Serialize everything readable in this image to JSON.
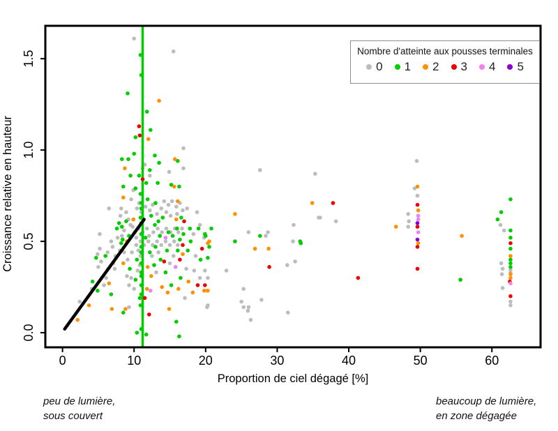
{
  "annotations": {
    "left": [
      "peu de lumière,",
      "sous couvert"
    ],
    "right": [
      "beaucoup de lumière,",
      "en zone dégagée"
    ]
  },
  "chart_data": {
    "type": "scatter",
    "xlabel": "Proportion de ciel dégagé [%]",
    "ylabel": "Croissance relative en hauteur",
    "xlim": [
      -2.4,
      66.8
    ],
    "ylim": [
      -0.08,
      1.68
    ],
    "x_ticks": [
      0,
      10,
      20,
      30,
      40,
      50,
      60
    ],
    "y_ticks": [
      {
        "v": 0,
        "label": "0.0"
      },
      {
        "v": 0.5,
        "label": "0.5"
      },
      {
        "v": 1.0,
        "label": "1.0"
      },
      {
        "v": 1.5,
        "label": "1.5"
      }
    ],
    "legend_title": "Nombre d'atteinte aux pousses terminales",
    "series_labels": [
      "0",
      "1",
      "2",
      "3",
      "4",
      "5"
    ],
    "series_colors": [
      "#BCBCBC",
      "#00CD00",
      "#FF9100",
      "#EE0000",
      "#EE82EE",
      "#8B00D0"
    ],
    "vline_x": 11.2,
    "vline_color": "#00CD00",
    "regression": {
      "x1": 0.3,
      "y1": 0.02,
      "x2": 11.4,
      "y2": 0.62,
      "color": "#000000"
    },
    "points": [
      [
        10.0,
        1.61,
        0
      ],
      [
        10.9,
        1.52,
        1
      ],
      [
        15.5,
        1.54,
        0
      ],
      [
        11.0,
        1.41,
        1
      ],
      [
        9.1,
        1.31,
        1
      ],
      [
        13.5,
        1.27,
        2
      ],
      [
        11.8,
        1.21,
        1
      ],
      [
        10.7,
        1.13,
        3
      ],
      [
        12.3,
        1.11,
        1
      ],
      [
        10.8,
        1.08,
        3
      ],
      [
        10.2,
        1.07,
        1
      ],
      [
        12.0,
        1.06,
        2
      ],
      [
        16.9,
        1.01,
        0
      ],
      [
        8.3,
        0.95,
        1
      ],
      [
        9.2,
        0.95,
        1
      ],
      [
        10.0,
        0.98,
        1
      ],
      [
        12.9,
        0.97,
        1
      ],
      [
        8.7,
        0.9,
        2
      ],
      [
        11.2,
        0.9,
        0
      ],
      [
        11.5,
        0.92,
        0
      ],
      [
        13.5,
        0.93,
        1
      ],
      [
        15.7,
        0.95,
        2
      ],
      [
        16.1,
        0.94,
        1
      ],
      [
        14.9,
        0.88,
        0
      ],
      [
        12.2,
        0.89,
        1
      ],
      [
        12.2,
        0.86,
        0
      ],
      [
        9.5,
        0.86,
        1
      ],
      [
        10.7,
        0.86,
        1
      ],
      [
        16.9,
        0.9,
        0
      ],
      [
        11.2,
        0.84,
        3
      ],
      [
        8.5,
        0.8,
        1
      ],
      [
        10.2,
        0.79,
        1
      ],
      [
        11.7,
        0.82,
        1
      ],
      [
        13.3,
        0.82,
        1
      ],
      [
        15.2,
        0.81,
        1
      ],
      [
        16.3,
        0.8,
        1
      ],
      [
        15.6,
        0.8,
        2
      ],
      [
        9.9,
        0.78,
        0
      ],
      [
        8.5,
        0.74,
        2
      ],
      [
        8.2,
        0.68,
        0
      ],
      [
        9.6,
        0.73,
        0
      ],
      [
        10.7,
        0.71,
        0
      ],
      [
        10.4,
        0.68,
        0
      ],
      [
        11.0,
        0.66,
        0
      ],
      [
        8.1,
        0.64,
        0
      ],
      [
        6.5,
        0.68,
        0
      ],
      [
        14.2,
        0.72,
        0
      ],
      [
        14.8,
        0.7,
        0
      ],
      [
        15.3,
        0.72,
        0
      ],
      [
        15.9,
        0.69,
        0
      ],
      [
        16.4,
        0.71,
        0
      ],
      [
        14.5,
        0.66,
        0
      ],
      [
        15.1,
        0.64,
        0
      ],
      [
        16.0,
        0.65,
        0
      ],
      [
        16.8,
        0.67,
        0
      ],
      [
        13.8,
        0.68,
        0
      ],
      [
        13.2,
        0.65,
        0
      ],
      [
        12.6,
        0.7,
        0
      ],
      [
        12.2,
        0.67,
        0
      ],
      [
        11.6,
        0.69,
        0
      ],
      [
        16.1,
        0.72,
        2
      ],
      [
        17.4,
        0.68,
        0
      ],
      [
        18.8,
        0.66,
        0
      ],
      [
        11.9,
        0.73,
        1
      ],
      [
        12.4,
        0.64,
        1
      ],
      [
        13.0,
        0.71,
        1
      ],
      [
        14.0,
        0.63,
        1
      ],
      [
        16.6,
        0.63,
        1
      ],
      [
        10.9,
        0.63,
        1
      ],
      [
        8.9,
        0.66,
        0
      ],
      [
        9.2,
        0.62,
        0
      ],
      [
        11.0,
        0.68,
        1
      ],
      [
        11.0,
        0.71,
        1
      ],
      [
        10.9,
        0.76,
        1
      ],
      [
        11.3,
        0.62,
        1
      ],
      [
        9.9,
        0.62,
        2
      ],
      [
        13.4,
        0.61,
        1
      ],
      [
        12.9,
        0.59,
        1
      ],
      [
        8.9,
        0.61,
        1
      ],
      [
        8.3,
        0.58,
        1
      ],
      [
        9.3,
        0.53,
        1
      ],
      [
        8.4,
        0.51,
        1
      ],
      [
        5.2,
        0.54,
        0
      ],
      [
        8.2,
        0.49,
        1
      ],
      [
        9.0,
        0.5,
        2
      ],
      [
        15.9,
        0.62,
        2
      ],
      [
        17.0,
        0.61,
        3
      ],
      [
        19.2,
        0.59,
        0
      ],
      [
        19.0,
        0.57,
        1
      ],
      [
        19.9,
        0.54,
        1
      ],
      [
        18.3,
        0.54,
        0
      ],
      [
        13.6,
        0.53,
        1
      ],
      [
        14.4,
        0.52,
        4
      ],
      [
        16.4,
        0.51,
        1
      ],
      [
        19.8,
        0.52,
        0
      ],
      [
        20.8,
        0.57,
        1
      ],
      [
        20.5,
        0.5,
        2
      ],
      [
        17.9,
        0.5,
        1
      ],
      [
        20.0,
        0.53,
        1
      ],
      [
        20.5,
        0.47,
        1
      ],
      [
        9.5,
        0.59,
        0
      ],
      [
        8.6,
        0.56,
        0
      ],
      [
        8.3,
        0.53,
        0
      ],
      [
        7.7,
        0.52,
        0
      ],
      [
        6.8,
        0.5,
        0
      ],
      [
        7.6,
        0.57,
        1
      ],
      [
        7.9,
        0.6,
        1
      ],
      [
        9.8,
        0.58,
        0
      ],
      [
        10.1,
        0.55,
        0
      ],
      [
        10.6,
        0.57,
        0
      ],
      [
        11.2,
        0.55,
        0
      ],
      [
        11.8,
        0.57,
        0
      ],
      [
        12.1,
        0.53,
        0
      ],
      [
        12.7,
        0.55,
        0
      ],
      [
        13.3,
        0.57,
        0
      ],
      [
        13.9,
        0.55,
        0
      ],
      [
        14.5,
        0.57,
        0
      ],
      [
        15.1,
        0.55,
        0
      ],
      [
        15.7,
        0.57,
        0
      ],
      [
        16.2,
        0.55,
        0
      ],
      [
        16.7,
        0.57,
        0
      ],
      [
        10.3,
        0.52,
        0
      ],
      [
        10.9,
        0.5,
        0
      ],
      [
        11.4,
        0.48,
        0
      ],
      [
        12.0,
        0.5,
        0
      ],
      [
        12.6,
        0.48,
        0
      ],
      [
        13.2,
        0.5,
        0
      ],
      [
        13.8,
        0.48,
        0
      ],
      [
        14.4,
        0.5,
        0
      ],
      [
        15.0,
        0.48,
        0
      ],
      [
        15.6,
        0.5,
        0
      ],
      [
        16.1,
        0.48,
        0
      ],
      [
        11.0,
        0.6,
        1
      ],
      [
        11.0,
        0.54,
        1
      ],
      [
        11.0,
        0.47,
        1
      ],
      [
        14.8,
        0.55,
        1
      ],
      [
        15.4,
        0.53,
        1
      ],
      [
        16.0,
        0.57,
        1
      ],
      [
        16.9,
        0.54,
        1
      ],
      [
        17.5,
        0.45,
        1
      ],
      [
        17.8,
        0.57,
        1
      ],
      [
        16.8,
        0.48,
        3
      ],
      [
        19.5,
        0.46,
        3
      ],
      [
        20.3,
        0.49,
        2
      ],
      [
        18.6,
        0.42,
        0
      ],
      [
        19.3,
        0.4,
        1
      ],
      [
        16.1,
        0.45,
        1
      ],
      [
        14.6,
        0.45,
        1
      ],
      [
        6.3,
        0.44,
        0
      ],
      [
        7.0,
        0.47,
        0
      ],
      [
        5.2,
        0.46,
        0
      ],
      [
        4.9,
        0.43,
        0
      ],
      [
        5.4,
        0.39,
        0
      ],
      [
        4.7,
        0.41,
        1
      ],
      [
        5.0,
        0.36,
        0
      ],
      [
        7.3,
        0.35,
        0
      ],
      [
        8.5,
        0.38,
        2
      ],
      [
        8.6,
        0.44,
        0
      ],
      [
        9.1,
        0.4,
        0
      ],
      [
        9.4,
        0.35,
        1
      ],
      [
        9.7,
        0.44,
        0
      ],
      [
        9.0,
        0.31,
        0
      ],
      [
        10.3,
        0.48,
        0
      ],
      [
        10.6,
        0.45,
        0
      ],
      [
        10.9,
        0.42,
        0
      ],
      [
        10.4,
        0.4,
        1
      ],
      [
        10.8,
        0.37,
        0
      ],
      [
        10.5,
        0.34,
        0
      ],
      [
        11.0,
        0.31,
        1
      ],
      [
        11.9,
        0.36,
        2
      ],
      [
        12.5,
        0.42,
        0
      ],
      [
        12.8,
        0.37,
        1
      ],
      [
        13.1,
        0.33,
        0
      ],
      [
        13.4,
        0.44,
        0
      ],
      [
        13.0,
        0.47,
        1
      ],
      [
        14.2,
        0.39,
        3
      ],
      [
        15.5,
        0.42,
        0
      ],
      [
        15.0,
        0.38,
        0
      ],
      [
        14.4,
        0.33,
        1
      ],
      [
        16.4,
        0.4,
        3
      ],
      [
        16.8,
        0.43,
        2
      ],
      [
        17.3,
        0.35,
        0
      ],
      [
        16.5,
        0.3,
        1
      ],
      [
        19.2,
        0.3,
        0
      ],
      [
        18.4,
        0.34,
        0
      ],
      [
        19.9,
        0.34,
        0
      ],
      [
        11.0,
        0.44,
        1
      ],
      [
        11.0,
        0.38,
        1
      ],
      [
        11.0,
        0.33,
        1
      ],
      [
        12.2,
        0.44,
        1
      ],
      [
        13.7,
        0.4,
        1
      ],
      [
        11.6,
        0.52,
        1
      ],
      [
        7.4,
        0.42,
        0
      ],
      [
        7.1,
        0.38,
        0
      ],
      [
        6.4,
        0.35,
        0
      ],
      [
        8.0,
        0.45,
        0
      ],
      [
        6.0,
        0.42,
        1
      ],
      [
        15.8,
        0.36,
        4
      ],
      [
        6.5,
        0.27,
        2
      ],
      [
        6.8,
        0.21,
        1
      ],
      [
        4.2,
        0.28,
        1
      ],
      [
        4.1,
        0.24,
        0
      ],
      [
        4.9,
        0.23,
        1
      ],
      [
        2.4,
        0.17,
        0
      ],
      [
        2.1,
        0.07,
        2
      ],
      [
        3.7,
        0.15,
        2
      ],
      [
        8.8,
        0.13,
        2
      ],
      [
        9.3,
        0.14,
        0
      ],
      [
        8.5,
        0.11,
        1
      ],
      [
        5.8,
        0.26,
        0
      ],
      [
        6.1,
        0.3,
        0
      ],
      [
        9.6,
        0.3,
        0
      ],
      [
        9.3,
        0.26,
        0
      ],
      [
        10.0,
        0.24,
        0
      ],
      [
        10.2,
        0.29,
        1
      ],
      [
        11.0,
        0.26,
        1
      ],
      [
        11.0,
        0.21,
        1
      ],
      [
        10.8,
        0.19,
        1
      ],
      [
        10.9,
        0.15,
        1
      ],
      [
        10.4,
        0.0,
        1
      ],
      [
        11.0,
        0.02,
        1
      ],
      [
        11.7,
        -0.01,
        1
      ],
      [
        11.5,
        0.19,
        3
      ],
      [
        12.1,
        0.1,
        3
      ],
      [
        12.3,
        0.23,
        4
      ],
      [
        12.4,
        0.31,
        2
      ],
      [
        14.7,
        0.22,
        2
      ],
      [
        14.9,
        0.13,
        2
      ],
      [
        15.2,
        0.26,
        1
      ],
      [
        15.9,
        0.06,
        1
      ],
      [
        16.3,
        -0.02,
        1
      ],
      [
        17.1,
        0.19,
        0
      ],
      [
        13.9,
        0.25,
        2
      ],
      [
        16.2,
        0.24,
        2
      ],
      [
        17.6,
        0.28,
        2
      ],
      [
        18.2,
        0.22,
        2
      ],
      [
        19.8,
        0.23,
        2
      ],
      [
        20.2,
        0.23,
        0
      ],
      [
        20.2,
        0.14,
        0
      ],
      [
        18.9,
        0.26,
        3
      ],
      [
        6.9,
        0.13,
        2
      ],
      [
        11.8,
        0.24,
        2
      ],
      [
        24.1,
        0.5,
        1
      ],
      [
        26.9,
        0.46,
        2
      ],
      [
        28.8,
        0.46,
        2
      ],
      [
        24.1,
        0.65,
        2
      ],
      [
        26.0,
        0.55,
        0
      ],
      [
        27.6,
        0.53,
        1
      ],
      [
        28.4,
        0.53,
        0
      ],
      [
        28.7,
        0.55,
        0
      ],
      [
        32.3,
        0.59,
        0
      ],
      [
        35.8,
        0.63,
        0
      ],
      [
        32.2,
        0.5,
        0
      ],
      [
        33.3,
        0.49,
        1
      ],
      [
        33.2,
        0.5,
        1
      ],
      [
        38.2,
        0.61,
        0
      ],
      [
        36.0,
        0.63,
        0
      ],
      [
        27.6,
        0.89,
        0
      ],
      [
        35.3,
        0.87,
        0
      ],
      [
        34.9,
        0.71,
        2
      ],
      [
        37.8,
        0.71,
        3
      ],
      [
        22.9,
        0.34,
        0
      ],
      [
        20.3,
        0.3,
        0
      ],
      [
        20.3,
        0.23,
        2
      ],
      [
        25.3,
        0.24,
        0
      ],
      [
        25.0,
        0.17,
        0
      ],
      [
        25.3,
        0.14,
        0
      ],
      [
        26.0,
        0.14,
        0
      ],
      [
        25.9,
        0.12,
        0
      ],
      [
        27.8,
        0.18,
        0
      ],
      [
        26.3,
        0.07,
        0
      ],
      [
        31.5,
        0.11,
        0
      ],
      [
        19.9,
        0.26,
        3
      ],
      [
        28.9,
        0.36,
        3
      ],
      [
        31.4,
        0.37,
        0
      ],
      [
        32.5,
        0.39,
        0
      ],
      [
        41.3,
        0.3,
        3
      ],
      [
        20.3,
        0.41,
        1
      ],
      [
        20.3,
        0.15,
        0
      ],
      [
        46.6,
        0.58,
        2
      ],
      [
        48.3,
        0.65,
        0
      ],
      [
        48.4,
        0.61,
        0
      ],
      [
        48.3,
        0.58,
        0
      ],
      [
        49.5,
        0.94,
        0
      ],
      [
        49.6,
        0.8,
        2
      ],
      [
        49.2,
        0.79,
        0
      ],
      [
        49.6,
        0.75,
        0
      ],
      [
        49.6,
        0.7,
        3
      ],
      [
        49.7,
        0.67,
        2
      ],
      [
        49.7,
        0.64,
        4
      ],
      [
        49.7,
        0.62,
        4
      ],
      [
        49.6,
        0.6,
        5
      ],
      [
        49.6,
        0.58,
        3
      ],
      [
        49.7,
        0.55,
        4
      ],
      [
        49.6,
        0.51,
        5
      ],
      [
        49.7,
        0.49,
        2
      ],
      [
        49.6,
        0.47,
        3
      ],
      [
        49.6,
        0.35,
        3
      ],
      [
        55.8,
        0.53,
        2
      ],
      [
        55.6,
        0.29,
        1
      ],
      [
        62.6,
        0.73,
        1
      ],
      [
        61.3,
        0.66,
        1
      ],
      [
        60.8,
        0.62,
        1
      ],
      [
        61.2,
        0.59,
        0
      ],
      [
        61.7,
        0.56,
        0
      ],
      [
        62.6,
        0.56,
        1
      ],
      [
        62.6,
        0.52,
        1
      ],
      [
        62.6,
        0.49,
        3
      ],
      [
        62.6,
        0.46,
        1
      ],
      [
        62.6,
        0.42,
        2
      ],
      [
        62.6,
        0.4,
        1
      ],
      [
        62.6,
        0.38,
        1
      ],
      [
        62.6,
        0.36,
        1
      ],
      [
        61.3,
        0.38,
        0
      ],
      [
        61.5,
        0.35,
        0
      ],
      [
        62.6,
        0.345,
        0
      ],
      [
        62.6,
        0.33,
        0
      ],
      [
        62.6,
        0.32,
        2
      ],
      [
        61.4,
        0.32,
        0
      ],
      [
        62.6,
        0.3,
        2
      ],
      [
        62.5,
        0.28,
        3
      ],
      [
        62.6,
        0.27,
        4
      ],
      [
        61.5,
        0.245,
        0
      ],
      [
        62.6,
        0.2,
        3
      ],
      [
        62.6,
        0.17,
        0
      ],
      [
        62.6,
        0.15,
        0
      ]
    ]
  }
}
